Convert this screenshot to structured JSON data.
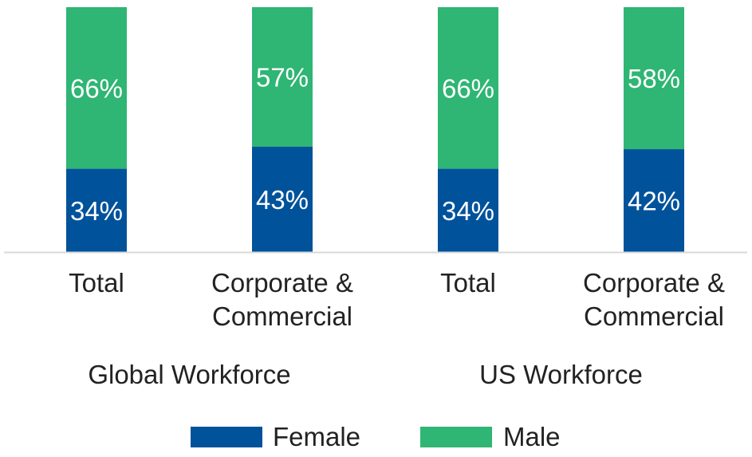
{
  "chart_data": {
    "type": "bar",
    "stacked": true,
    "percent_stacked": true,
    "title": "",
    "xlabel": "",
    "ylabel": "",
    "ylim": [
      0,
      100
    ],
    "grid": false,
    "legend_position": "bottom",
    "categories": [
      [
        "Total"
      ],
      [
        "Corporate &",
        "Commercial"
      ],
      [
        "Total"
      ],
      [
        "Corporate &",
        "Commercial"
      ]
    ],
    "groups": [
      {
        "label": "Global Workforce",
        "category_indices": [
          0,
          1
        ]
      },
      {
        "label": "US Workforce",
        "category_indices": [
          2,
          3
        ]
      }
    ],
    "series": [
      {
        "name": "Female",
        "values": [
          34,
          43,
          34,
          42
        ],
        "labels": [
          "34%",
          "43%",
          "34%",
          "42%"
        ],
        "color": "#00529b"
      },
      {
        "name": "Male",
        "values": [
          66,
          57,
          66,
          58
        ],
        "labels": [
          "66%",
          "57%",
          "66%",
          "58%"
        ],
        "color": "#2fb574"
      }
    ],
    "axis_color": "#d9d9d9"
  }
}
